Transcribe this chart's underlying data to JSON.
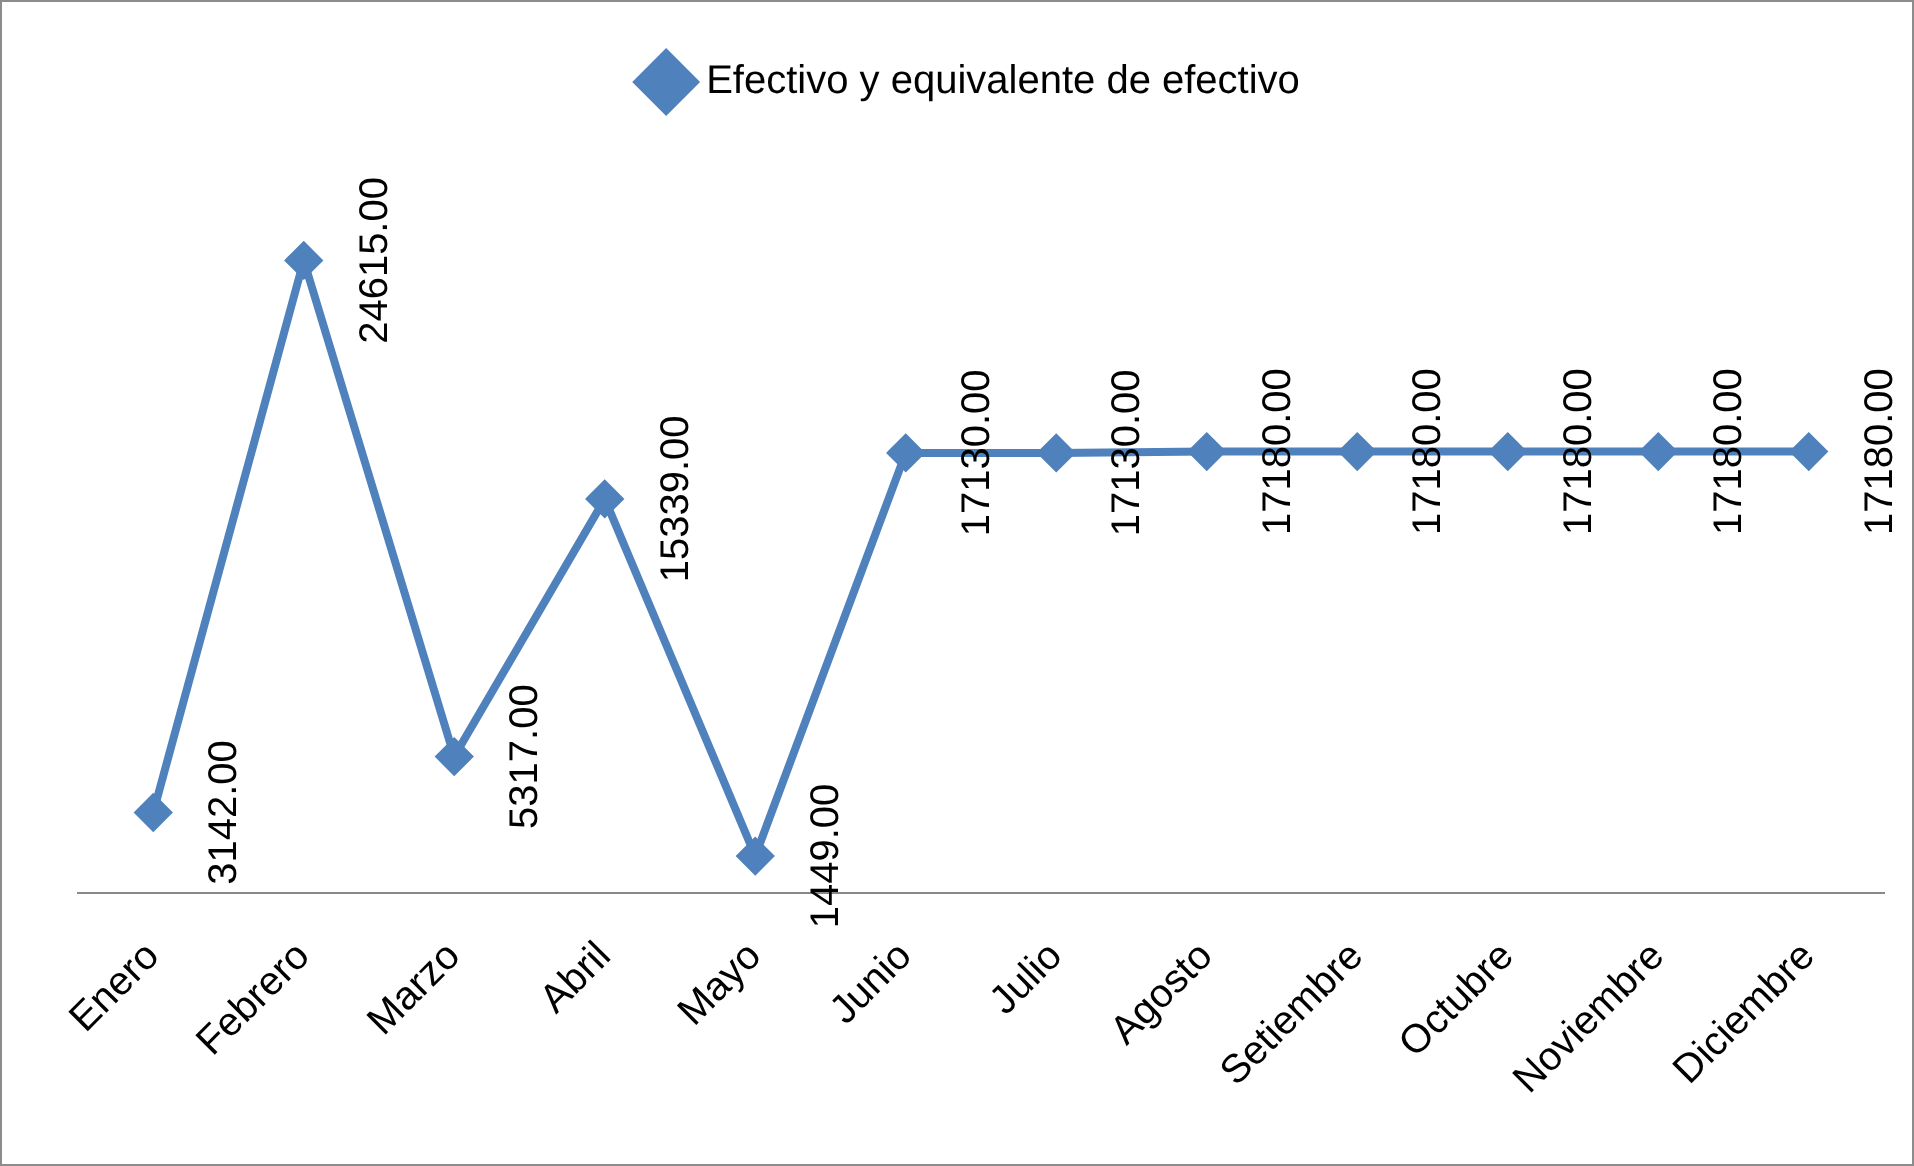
{
  "chart_data": {
    "type": "line",
    "categories": [
      "Enero",
      "Febrero",
      "Marzo",
      "Abril",
      "Mayo",
      "Junio",
      "Julio",
      "Agosto",
      "Setiembre",
      "Octubre",
      "Noviembre",
      "Diciembre"
    ],
    "series": [
      {
        "name": "Efectivo y equivalente de efectivo",
        "color": "#4f81bd",
        "values": [
          3142,
          24615,
          5317,
          15339,
          1449,
          17130,
          17130,
          17180,
          17180,
          17180,
          17180,
          17180
        ],
        "value_labels": [
          "3142.00",
          "24615.00",
          "5317.00",
          "15339.00",
          "1449.00",
          "17130.00",
          "17130.00",
          "17180.00",
          "17180.00",
          "17180.00",
          "17180.00",
          "17180.00"
        ]
      }
    ],
    "relative": false,
    "marker": "diamond",
    "legend": "top",
    "grid": false
  }
}
